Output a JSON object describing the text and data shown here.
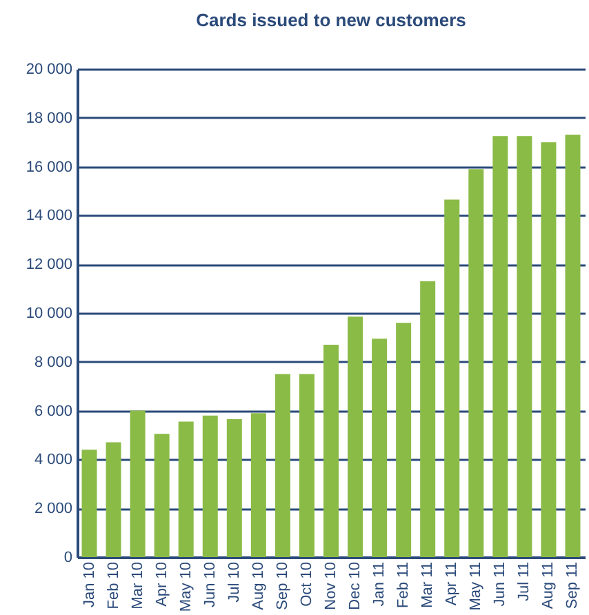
{
  "chart_data": {
    "type": "bar",
    "title": "Cards issued to new customers",
    "categories": [
      "Jan 10",
      "Feb 10",
      "Mar 10",
      "Apr 10",
      "May 10",
      "Jun 10",
      "Jul 10",
      "Aug 10",
      "Sep 10",
      "Oct 10",
      "Nov 10",
      "Dec 10",
      "Jan 11",
      "Feb 11",
      "Mar 11",
      "Apr 11",
      "May 11",
      "Jun 11",
      "Jul 11",
      "Aug 11",
      "Sep 11"
    ],
    "values": [
      4400,
      4700,
      6000,
      5050,
      5550,
      5800,
      5650,
      5900,
      7500,
      7500,
      8700,
      9850,
      8950,
      9600,
      11300,
      14650,
      15900,
      17250,
      17250,
      17000,
      17300
    ],
    "color": "#8bbb47",
    "ylim": [
      0,
      20000
    ],
    "yticks": [
      0,
      {
        "value": 2000,
        "label": "2 000"
      },
      {
        "value": 4000,
        "label": "4 000"
      },
      {
        "value": 6000,
        "label": "6 000"
      },
      {
        "value": 8000,
        "label": "8 000"
      },
      {
        "value": 10000,
        "label": "10 000"
      },
      {
        "value": 12000,
        "label": "12 000"
      },
      {
        "value": 14000,
        "label": "14 000"
      },
      {
        "value": 16000,
        "label": "16 000"
      },
      {
        "value": 18000,
        "label": "18 000"
      },
      {
        "value": 20000,
        "label": "20 000"
      }
    ],
    "grid": "y"
  }
}
